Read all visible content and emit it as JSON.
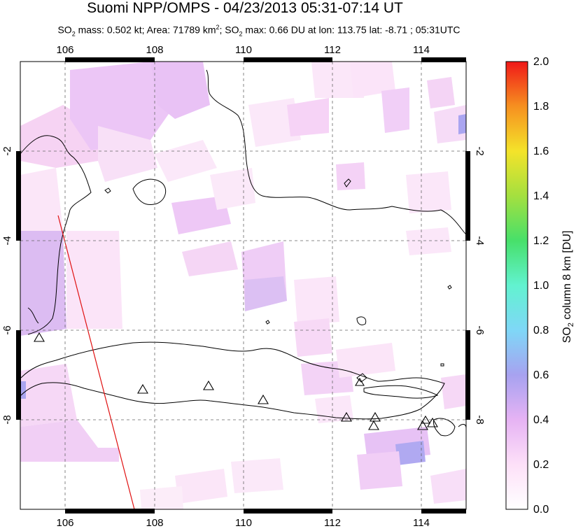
{
  "title": "Suomi NPP/OMPS - 04/23/2013 05:31-07:14 UT",
  "subtitle": {
    "part1": "SO",
    "sub1": "2",
    "part2": " mass: 0.502 kt; Area: 71789 km",
    "sup": "2",
    "part3": "; SO",
    "sub2": "2",
    "part4": " max: 0.66 DU at lon: 113.75 lat: -8.71 ; 05:31UTC"
  },
  "map": {
    "lon_range": [
      105,
      115
    ],
    "lat_range": [
      -10,
      0
    ],
    "lon_ticks": [
      "106",
      "108",
      "110",
      "112",
      "114"
    ],
    "lat_ticks": [
      "-2",
      "-4",
      "-6",
      "-8"
    ],
    "volcano_markers": 11
  },
  "colorbar": {
    "ticks": [
      "0.0",
      "0.2",
      "0.4",
      "0.6",
      "0.8",
      "1.0",
      "1.2",
      "1.4",
      "1.6",
      "1.8",
      "2.0"
    ],
    "label_prefix": "SO",
    "label_sub": "2",
    "label_suffix": " column 8 km [DU]",
    "colors": [
      "#ffffff",
      "#fde0f8",
      "#e6b3f4",
      "#a7a2f0",
      "#7fd7f7",
      "#62f2d0",
      "#47e06a",
      "#a4e03f",
      "#f4e32a",
      "#f69020",
      "#f01818"
    ]
  }
}
